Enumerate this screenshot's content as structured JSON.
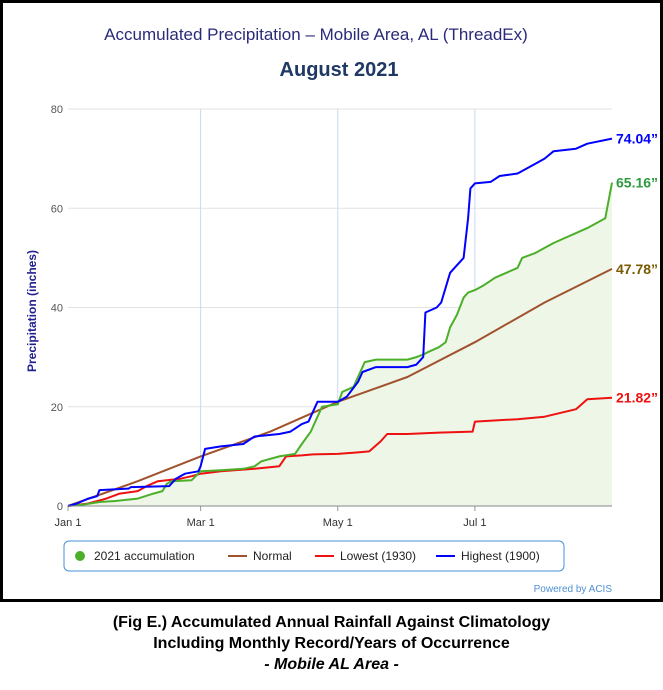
{
  "chart_data": {
    "type": "line",
    "title": "Accumulated Precipitation – Mobile Area, AL (ThreadEx)",
    "subtitle": "August 2021",
    "ylabel": "Precipitation (inches)",
    "xlabel": "",
    "x_ticks": [
      "Jan 1",
      "Mar 1",
      "May 1",
      "Jul 1"
    ],
    "y_ticks": [
      0,
      20,
      40,
      60,
      80
    ],
    "ylim": [
      0,
      80
    ],
    "x_domain": [
      "Jan 1",
      "Aug 31"
    ],
    "grid": true,
    "legend": "bottom",
    "credit": "Powered by ACIS",
    "series": [
      {
        "name": "Highest (1900)",
        "color": "#0000ff",
        "end_label": "74.04”",
        "points": [
          [
            "Jan 1",
            0
          ],
          [
            "Jan 5",
            0.5
          ],
          [
            "Jan 10",
            1.5
          ],
          [
            "Jan 14",
            2.0
          ],
          [
            "Jan 15",
            3.2
          ],
          [
            "Jan 28",
            3.5
          ],
          [
            "Jan 29",
            3.8
          ],
          [
            "Feb 15",
            4.0
          ],
          [
            "Feb 18",
            5.5
          ],
          [
            "Feb 22",
            6.5
          ],
          [
            "Feb 28",
            7.0
          ],
          [
            "Mar 1",
            8.0
          ],
          [
            "Mar 3",
            11.5
          ],
          [
            "Mar 10",
            12.0
          ],
          [
            "Mar 20",
            12.5
          ],
          [
            "Mar 25",
            14.0
          ],
          [
            "Apr 5",
            14.5
          ],
          [
            "Apr 10",
            15.0
          ],
          [
            "Apr 15",
            16.5
          ],
          [
            "Apr 18",
            17.0
          ],
          [
            "Apr 20",
            19.0
          ],
          [
            "Apr 22",
            21.0
          ],
          [
            "May 1",
            21.0
          ],
          [
            "May 5",
            22.0
          ],
          [
            "May 10",
            25.0
          ],
          [
            "May 12",
            27.0
          ],
          [
            "May 18",
            28.0
          ],
          [
            "Jun 1",
            28.0
          ],
          [
            "Jun 5",
            28.5
          ],
          [
            "Jun 8",
            30.0
          ],
          [
            "Jun 9",
            39.0
          ],
          [
            "Jun 14",
            40.0
          ],
          [
            "Jun 16",
            41.0
          ],
          [
            "Jun 20",
            47.0
          ],
          [
            "Jun 22",
            48.0
          ],
          [
            "Jun 26",
            50.0
          ],
          [
            "Jun 28",
            58.0
          ],
          [
            "Jun 29",
            64.0
          ],
          [
            "Jul 1",
            65.0
          ],
          [
            "Jul 8",
            65.3
          ],
          [
            "Jul 12",
            66.5
          ],
          [
            "Jul 20",
            67.0
          ],
          [
            "Jul 28",
            69.0
          ],
          [
            "Aug 1",
            70.0
          ],
          [
            "Aug 5",
            71.5
          ],
          [
            "Aug 15",
            72.0
          ],
          [
            "Aug 20",
            73.0
          ],
          [
            "Aug 31",
            74.04
          ]
        ]
      },
      {
        "name": "2021 accumulation",
        "color": "#4caf2a",
        "fill": "#eef6e8",
        "end_label": "65.16”",
        "points": [
          [
            "Jan 1",
            0
          ],
          [
            "Jan 8",
            0.3
          ],
          [
            "Jan 15",
            0.8
          ],
          [
            "Jan 22",
            1.0
          ],
          [
            "Feb 1",
            1.5
          ],
          [
            "Feb 8",
            2.5
          ],
          [
            "Feb 12",
            3.0
          ],
          [
            "Feb 14",
            4.5
          ],
          [
            "Feb 16",
            5.0
          ],
          [
            "Feb 25",
            5.2
          ],
          [
            "Mar 1",
            7.0
          ],
          [
            "Mar 10",
            7.2
          ],
          [
            "Mar 20",
            7.5
          ],
          [
            "Mar 25",
            8.0
          ],
          [
            "Mar 28",
            9.0
          ],
          [
            "Apr 5",
            10.0
          ],
          [
            "Apr 12",
            10.5
          ],
          [
            "Apr 15",
            12.5
          ],
          [
            "Apr 19",
            15.0
          ],
          [
            "Apr 22",
            18.0
          ],
          [
            "Apr 24",
            20.0
          ],
          [
            "May 1",
            20.5
          ],
          [
            "May 3",
            23.0
          ],
          [
            "May 8",
            24.0
          ],
          [
            "May 10",
            26.0
          ],
          [
            "May 12",
            28.0
          ],
          [
            "May 13",
            29.0
          ],
          [
            "May 18",
            29.5
          ],
          [
            "Jun 1",
            29.5
          ],
          [
            "Jun 5",
            30.0
          ],
          [
            "Jun 8",
            30.5
          ],
          [
            "Jun 10",
            31.0
          ],
          [
            "Jun 15",
            32.0
          ],
          [
            "Jun 18",
            33.0
          ],
          [
            "Jun 20",
            36.0
          ],
          [
            "Jun 23",
            38.5
          ],
          [
            "Jun 26",
            42.0
          ],
          [
            "Jun 28",
            43.0
          ],
          [
            "Jul 1",
            43.5
          ],
          [
            "Jul 5",
            44.5
          ],
          [
            "Jul 10",
            46.0
          ],
          [
            "Jul 15",
            47.0
          ],
          [
            "Jul 20",
            48.0
          ],
          [
            "Jul 22",
            50.0
          ],
          [
            "Jul 28",
            51.0
          ],
          [
            "Aug 1",
            52.0
          ],
          [
            "Aug 5",
            53.0
          ],
          [
            "Aug 10",
            54.0
          ],
          [
            "Aug 15",
            55.0
          ],
          [
            "Aug 20",
            56.0
          ],
          [
            "Aug 28",
            58.0
          ],
          [
            "Aug 31",
            65.16
          ]
        ]
      },
      {
        "name": "Normal",
        "color": "#a0522d",
        "end_label": "47.78”",
        "points": [
          [
            "Jan 1",
            0
          ],
          [
            "Feb 1",
            5.0
          ],
          [
            "Mar 1",
            10.0
          ],
          [
            "Apr 1",
            15.0
          ],
          [
            "May 1",
            21.0
          ],
          [
            "Jun 1",
            26.0
          ],
          [
            "Jul 1",
            33.0
          ],
          [
            "Aug 1",
            41.0
          ],
          [
            "Aug 31",
            47.78
          ]
        ]
      },
      {
        "name": "Lowest (1930)",
        "color": "#ee1111",
        "end_label": "21.82”",
        "points": [
          [
            "Jan 1",
            0
          ],
          [
            "Jan 10",
            0.5
          ],
          [
            "Jan 18",
            1.5
          ],
          [
            "Jan 24",
            2.5
          ],
          [
            "Feb 1",
            3.0
          ],
          [
            "Feb 5",
            4.0
          ],
          [
            "Feb 10",
            5.0
          ],
          [
            "Feb 20",
            5.5
          ],
          [
            "Feb 25",
            6.0
          ],
          [
            "Mar 1",
            6.5
          ],
          [
            "Mar 10",
            7.0
          ],
          [
            "Mar 25",
            7.5
          ],
          [
            "Apr 5",
            8.0
          ],
          [
            "Apr 8",
            10.0
          ],
          [
            "Apr 15",
            10.2
          ],
          [
            "Apr 20",
            10.4
          ],
          [
            "May 1",
            10.5
          ],
          [
            "May 10",
            10.8
          ],
          [
            "May 15",
            11.0
          ],
          [
            "May 20",
            13.0
          ],
          [
            "May 23",
            14.5
          ],
          [
            "Jun 1",
            14.5
          ],
          [
            "Jun 15",
            14.8
          ],
          [
            "Jun 30",
            15.0
          ],
          [
            "Jul 1",
            17.0
          ],
          [
            "Jul 20",
            17.5
          ],
          [
            "Aug 1",
            18.0
          ],
          [
            "Aug 15",
            19.5
          ],
          [
            "Aug 20",
            21.5
          ],
          [
            "Aug 31",
            21.82
          ]
        ]
      }
    ]
  },
  "caption": {
    "line1": "(Fig E.) Accumulated Annual Rainfall Against  Climatology",
    "line2": "Including Monthly Record/Years of Occurrence",
    "line3": "- Mobile AL Area -"
  }
}
